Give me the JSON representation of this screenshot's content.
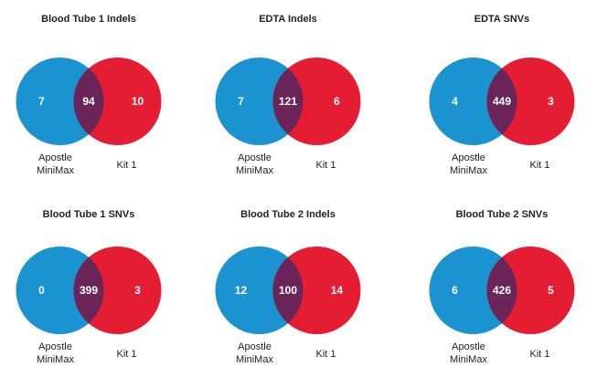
{
  "colors": {
    "left": "#1b93d1",
    "right": "#e41d32",
    "overlap": "#6b2558"
  },
  "labels": {
    "left_line1": "Apostle",
    "left_line2": "MiniMax",
    "right": "Kit 1"
  },
  "venns": [
    {
      "title": "Blood Tube 1 Indels",
      "left_only": 7,
      "both": 94,
      "right_only": 10
    },
    {
      "title": "EDTA Indels",
      "left_only": 7,
      "both": 121,
      "right_only": 6
    },
    {
      "title": "EDTA SNVs",
      "left_only": 4,
      "both": 449,
      "right_only": 3
    },
    {
      "title": "Blood Tube 1 SNVs",
      "left_only": 0,
      "both": 399,
      "right_only": 3
    },
    {
      "title": "Blood Tube 2 Indels",
      "left_only": 12,
      "both": 100,
      "right_only": 14
    },
    {
      "title": "Blood Tube 2 SNVs",
      "left_only": 6,
      "both": 426,
      "right_only": 5
    }
  ]
}
